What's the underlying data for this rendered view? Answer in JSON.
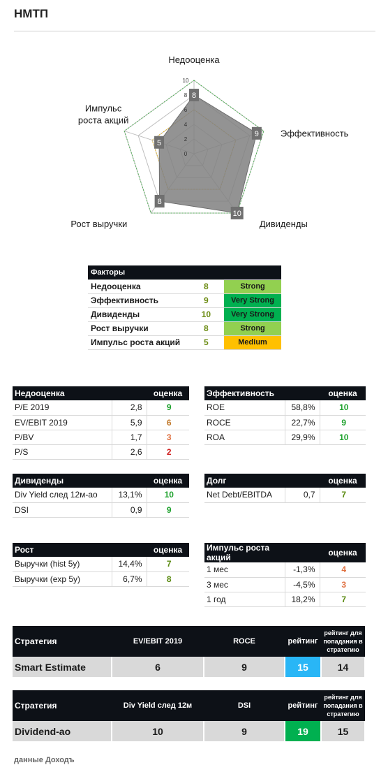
{
  "title": "НМТП",
  "chart_data": {
    "type": "radar",
    "axes": [
      "Недооценка",
      "Эффективность",
      "Дивиденды",
      "Рост выручки",
      "Импульс роста акций"
    ],
    "values": [
      8,
      9,
      10,
      8,
      5
    ],
    "ticks": [
      "0",
      "2",
      "4",
      "6",
      "8",
      "10"
    ],
    "range": [
      0,
      10
    ],
    "colors": {
      "fill": "#808080",
      "outer": "#4caf50",
      "inner": "#e0b020",
      "grid": "#bfbfbf"
    }
  },
  "factors": {
    "header": "Факторы",
    "rows": [
      {
        "name": "Недооценка",
        "score": "8",
        "badge": "Strong",
        "color": "#92d050",
        "textColor": "#1a1a1a"
      },
      {
        "name": "Эффективность",
        "score": "9",
        "badge": "Very Strong",
        "color": "#00b050",
        "textColor": "#1a1a1a"
      },
      {
        "name": "Дивиденды",
        "score": "10",
        "badge": "Very Strong",
        "color": "#00b050",
        "textColor": "#1a1a1a"
      },
      {
        "name": "Рост выручки",
        "score": "8",
        "badge": "Strong",
        "color": "#92d050",
        "textColor": "#1a1a1a"
      },
      {
        "name": "Импульс роста акций",
        "score": "5",
        "badge": "Medium",
        "color": "#ffc000",
        "textColor": "#1a1a1a"
      }
    ]
  },
  "score_colors": {
    "10": "#1fa22e",
    "9": "#1fa22e",
    "8": "#5a8a10",
    "7": "#5a8a10",
    "6": "#c0782a",
    "5": "#b08020",
    "4": "#e07040",
    "3": "#e07040",
    "2": "#d02020"
  },
  "tables": {
    "nedo": {
      "title": "Недооценка",
      "score_label": "оценка",
      "rows": [
        {
          "name": "P/E 2019",
          "value": "2,8",
          "score": "9"
        },
        {
          "name": "EV/EBIT 2019",
          "value": "5,9",
          "score": "6"
        },
        {
          "name": "P/BV",
          "value": "1,7",
          "score": "3"
        },
        {
          "name": "P/S",
          "value": "2,6",
          "score": "2"
        }
      ]
    },
    "eff": {
      "title": "Эффективность",
      "score_label": "оценка",
      "rows": [
        {
          "name": "ROE",
          "value": "58,8%",
          "score": "10"
        },
        {
          "name": "ROCE",
          "value": "22,7%",
          "score": "9"
        },
        {
          "name": "ROA",
          "value": "29,9%",
          "score": "10"
        }
      ]
    },
    "div": {
      "title": "Дивиденды",
      "score_label": "оценка",
      "rows": [
        {
          "name": "Div Yield след 12м-ао",
          "value": "13,1%",
          "score": "10"
        },
        {
          "name": "DSI",
          "value": "0,9",
          "score": "9"
        }
      ]
    },
    "debt": {
      "title": "Долг",
      "score_label": "оценка",
      "rows": [
        {
          "name": "Net Debt/EBITDA",
          "value": "0,7",
          "score": "7"
        }
      ]
    },
    "growth": {
      "title": "Рост",
      "score_label": "оценка",
      "rows": [
        {
          "name": "Выручки (hist 5y)",
          "value": "14,4%",
          "score": "7"
        },
        {
          "name": "Выручки (exp 5y)",
          "value": "6,7%",
          "score": "8"
        }
      ]
    },
    "momentum": {
      "title": "Импульс роста акций",
      "score_label": "оценка",
      "rows": [
        {
          "name": "1 мес",
          "value": "-1,3%",
          "score": "4"
        },
        {
          "name": "3 мес",
          "value": "-4,5%",
          "score": "3"
        },
        {
          "name": "1 год",
          "value": "18,2%",
          "score": "7"
        }
      ]
    }
  },
  "strategies": [
    {
      "headers": [
        "Стратегия",
        "EV/EBIT 2019",
        "ROCE",
        "рейтинг",
        "рейтинг для попадания в стратегию"
      ],
      "name": "Smart Estimate",
      "m1": "6",
      "m2": "9",
      "rating": "15",
      "rating_color": "#29b6f6",
      "threshold": "14"
    },
    {
      "headers": [
        "Стратегия",
        "Div Yield след 12м",
        "DSI",
        "рейтинг",
        "рейтинг для попадания в стратегию"
      ],
      "name": "Dividend-ao",
      "m1": "10",
      "m2": "9",
      "rating": "19",
      "rating_color": "#00b050",
      "threshold": "15"
    }
  ],
  "footer": "данные Доходъ"
}
